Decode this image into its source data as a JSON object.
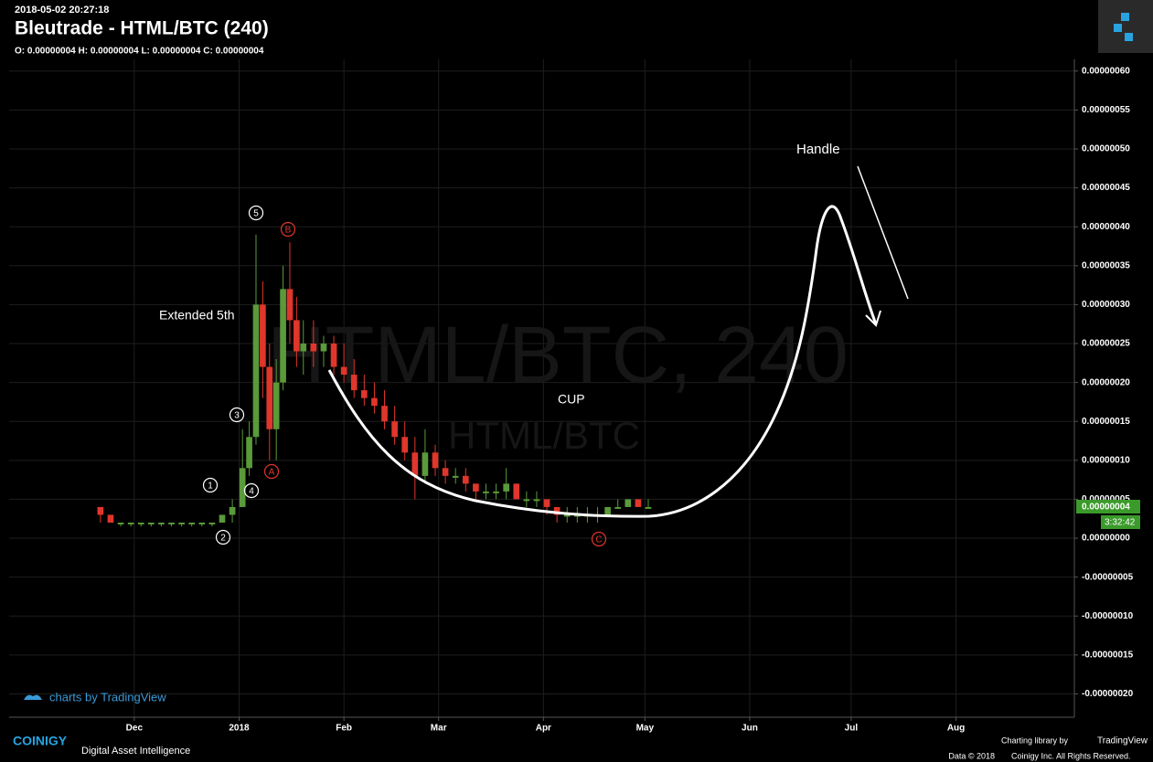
{
  "chart_data": {
    "type": "candlestick",
    "title": "Bleutrade - HTML/BTC (240)",
    "subtitle": "2018-05-02 20:27:18",
    "ohlc_text": "O: 0.00000004 H: 0.00000004 L: 0.00000004 C: 0.00000004",
    "watermark": "HTML/BTC, 240",
    "watermark_sub": "HTML/BTC",
    "annotations": [
      "Extended 5th",
      "CUP",
      "Handle"
    ],
    "wave_labels": [
      "1",
      "2",
      "3",
      "4",
      "5",
      "A",
      "B",
      "C"
    ],
    "price_tag": "0.00000004",
    "countdown": "3:32:42",
    "up_color": "#5a9a3a",
    "down_color": "#e0362b",
    "grid": true,
    "x": [
      20,
      23,
      26,
      29,
      32,
      35,
      38,
      41,
      44,
      47,
      50,
      53,
      56,
      59,
      62,
      64,
      66,
      68,
      70,
      72,
      74,
      76,
      78,
      80,
      83,
      86,
      89,
      92,
      95,
      98,
      101,
      104,
      107,
      110,
      113,
      116,
      119,
      122,
      125,
      128,
      131,
      134,
      137,
      140,
      143,
      146,
      149,
      152,
      155,
      158,
      161,
      164,
      167,
      170,
      173,
      176,
      179,
      182
    ],
    "open": [
      4e-08,
      3e-08,
      2e-08,
      2e-08,
      2e-08,
      2e-08,
      2e-08,
      2e-08,
      2e-08,
      2e-08,
      2e-08,
      2e-08,
      2e-08,
      3e-08,
      4e-08,
      9e-08,
      1.3e-07,
      3e-07,
      2.2e-07,
      1.4e-07,
      2e-07,
      3.2e-07,
      2.8e-07,
      2.4e-07,
      2.5e-07,
      2.4e-07,
      2.5e-07,
      2.2e-07,
      2.1e-07,
      1.9e-07,
      1.8e-07,
      1.7e-07,
      1.5e-07,
      1.3e-07,
      1.1e-07,
      8e-08,
      1.1e-07,
      9e-08,
      8e-08,
      8e-08,
      7e-08,
      6e-08,
      6e-08,
      6e-08,
      7e-08,
      5e-08,
      5e-08,
      5e-08,
      4e-08,
      3e-08,
      3e-08,
      3e-08,
      3e-08,
      3e-08,
      4e-08,
      4e-08,
      5e-08,
      4e-08
    ],
    "high": [
      4e-08,
      3e-08,
      2e-08,
      2e-08,
      2e-08,
      2e-08,
      2e-08,
      2e-08,
      2e-08,
      2e-08,
      2e-08,
      2e-08,
      3e-08,
      5e-08,
      1.4e-07,
      1.5e-07,
      3.9e-07,
      3.3e-07,
      2.5e-07,
      2.3e-07,
      3.5e-07,
      3.8e-07,
      3.1e-07,
      2.8e-07,
      2.8e-07,
      2.6e-07,
      2.6e-07,
      2.5e-07,
      2.3e-07,
      2.1e-07,
      2e-07,
      1.9e-07,
      1.7e-07,
      1.5e-07,
      1.3e-07,
      1.4e-07,
      1.2e-07,
      1e-07,
      9e-08,
      9e-08,
      7e-08,
      7e-08,
      7e-08,
      9e-08,
      7e-08,
      6e-08,
      6e-08,
      5e-08,
      4e-08,
      4e-08,
      4e-08,
      4e-08,
      4e-08,
      4e-08,
      5e-08,
      5e-08,
      5e-08,
      5e-08
    ],
    "low": [
      2e-08,
      2e-08,
      1.5e-08,
      1.5e-08,
      1.5e-08,
      1.5e-08,
      1.5e-08,
      1.5e-08,
      1.5e-08,
      1.5e-08,
      1.5e-08,
      1.5e-08,
      2e-08,
      2e-08,
      4e-08,
      8e-08,
      1.2e-07,
      1.8e-07,
      1e-07,
      1e-07,
      1.9e-07,
      2.5e-07,
      2.2e-07,
      2.1e-07,
      2.2e-07,
      2.2e-07,
      2.1e-07,
      2e-07,
      1.8e-07,
      1.7e-07,
      1.6e-07,
      1.4e-07,
      1.2e-07,
      1e-07,
      5e-08,
      7e-08,
      8e-08,
      7e-08,
      7e-08,
      6e-08,
      5e-08,
      5e-08,
      5e-08,
      5e-08,
      5e-08,
      4e-08,
      4e-08,
      3e-08,
      2e-08,
      2e-08,
      2e-08,
      2e-08,
      2e-08,
      3e-08,
      4e-08,
      4e-08,
      4e-08,
      4e-08
    ],
    "close": [
      3e-08,
      2e-08,
      2e-08,
      2e-08,
      2e-08,
      2e-08,
      2e-08,
      2e-08,
      2e-08,
      2e-08,
      2e-08,
      2e-08,
      3e-08,
      4e-08,
      9e-08,
      1.3e-07,
      3e-07,
      2.2e-07,
      1.4e-07,
      2e-07,
      3.2e-07,
      2.8e-07,
      2.4e-07,
      2.5e-07,
      2.4e-07,
      2.5e-07,
      2.2e-07,
      2.1e-07,
      1.9e-07,
      1.8e-07,
      1.7e-07,
      1.5e-07,
      1.3e-07,
      1.1e-07,
      8e-08,
      1.1e-07,
      9e-08,
      8e-08,
      8e-08,
      7e-08,
      6e-08,
      6e-08,
      6e-08,
      7e-08,
      5e-08,
      5e-08,
      5e-08,
      4e-08,
      3e-08,
      3e-08,
      3e-08,
      3e-08,
      3e-08,
      4e-08,
      4e-08,
      5e-08,
      4e-08,
      4e-08
    ],
    "xlim": [
      -7,
      308
    ],
    "xticks": [
      {
        "value": 30,
        "label": "Dec"
      },
      {
        "value": 61,
        "label": "2018"
      },
      {
        "value": 92,
        "label": "Feb"
      },
      {
        "value": 120,
        "label": "Mar"
      },
      {
        "value": 151,
        "label": "Apr"
      },
      {
        "value": 181,
        "label": "May"
      },
      {
        "value": 212,
        "label": "Jun"
      },
      {
        "value": 242,
        "label": "Jul"
      },
      {
        "value": 273,
        "label": "Aug"
      }
    ],
    "ylim": [
      -2.3e-07,
      6.15e-07
    ],
    "yticks": [
      {
        "value": 6e-07,
        "label": "0.00000060"
      },
      {
        "value": 5.5e-07,
        "label": "0.00000055"
      },
      {
        "value": 5e-07,
        "label": "0.00000050"
      },
      {
        "value": 4.5e-07,
        "label": "0.00000045"
      },
      {
        "value": 4e-07,
        "label": "0.00000040"
      },
      {
        "value": 3.5e-07,
        "label": "0.00000035"
      },
      {
        "value": 3e-07,
        "label": "0.00000030"
      },
      {
        "value": 2.5e-07,
        "label": "0.00000025"
      },
      {
        "value": 2e-07,
        "label": "0.00000020"
      },
      {
        "value": 1.5e-07,
        "label": "0.00000015"
      },
      {
        "value": 1e-07,
        "label": "0.00000010"
      },
      {
        "value": 5e-08,
        "label": "0.00000005"
      },
      {
        "value": 0,
        "label": "0.00000000"
      },
      {
        "value": -5e-08,
        "label": "-0.00000005"
      },
      {
        "value": -1e-07,
        "label": "-0.00000010"
      },
      {
        "value": -1.5e-07,
        "label": "-0.00000015"
      },
      {
        "value": -2e-07,
        "label": "-0.00000020"
      }
    ]
  },
  "footer": {
    "tv_link": "charts by TradingView",
    "brand": "COINIGY",
    "tagline": "Digital Asset Intelligence",
    "library": "Charting library by",
    "library_brand": "TradingView",
    "data": "Data © 2018",
    "rights": "Coinigy Inc. All Rights Reserved."
  }
}
